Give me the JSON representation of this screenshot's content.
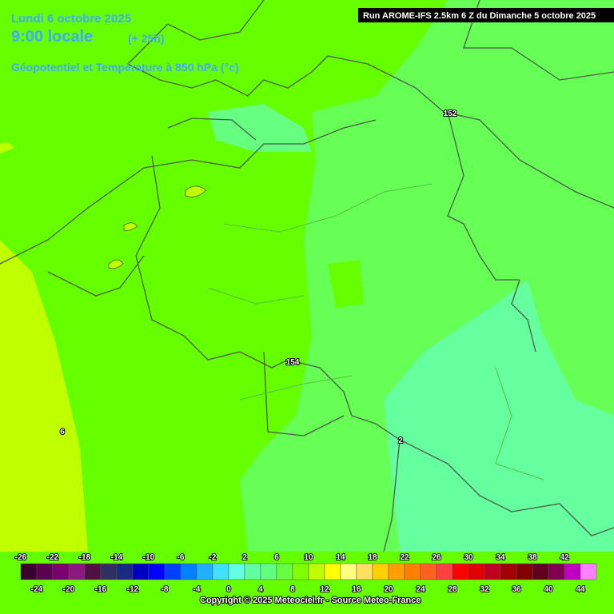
{
  "header": {
    "date": "Lundi 6 octobre 2025",
    "time": "9:00 locale",
    "lead": "(+ 25h)",
    "field": "Géopotentiel et Température à 850 hPa (°c)",
    "run": "Run AROME-IFS 2.5km 6 Z du Dimanche 5 octobre 2025"
  },
  "contour_labels": [
    152,
    154,
    6,
    2
  ],
  "scale": {
    "colors": [
      "#3c0030",
      "#5c0050",
      "#7a0070",
      "#8a1880",
      "#501040",
      "#303060",
      "#1a2a80",
      "#0000c0",
      "#0000ff",
      "#0040ff",
      "#0080ff",
      "#20b0ff",
      "#40e0ff",
      "#60ffe0",
      "#60ffa0",
      "#60ff80",
      "#66ff40",
      "#80ff00",
      "#c0ff00",
      "#ffff00",
      "#ffff80",
      "#ffe060",
      "#ffd000",
      "#ffa000",
      "#ff8000",
      "#ff6020",
      "#ff4040",
      "#ff0000",
      "#e00000",
      "#c00020",
      "#a00000",
      "#800000",
      "#600020",
      "#800050",
      "#c000c0",
      "#ff80ff"
    ],
    "top_labels": [
      -26,
      -22,
      -18,
      -14,
      -10,
      -6,
      -2,
      2,
      6,
      10,
      14,
      18,
      22,
      26,
      30,
      34,
      38,
      42
    ],
    "bottom_labels": [
      -24,
      -20,
      -16,
      -12,
      -8,
      -4,
      0,
      4,
      8,
      12,
      16,
      20,
      24,
      28,
      32,
      36,
      40,
      44
    ]
  },
  "footer": {
    "copyright": "Copyright © 2025 Meteociel.fr - Source Meteo-France"
  }
}
